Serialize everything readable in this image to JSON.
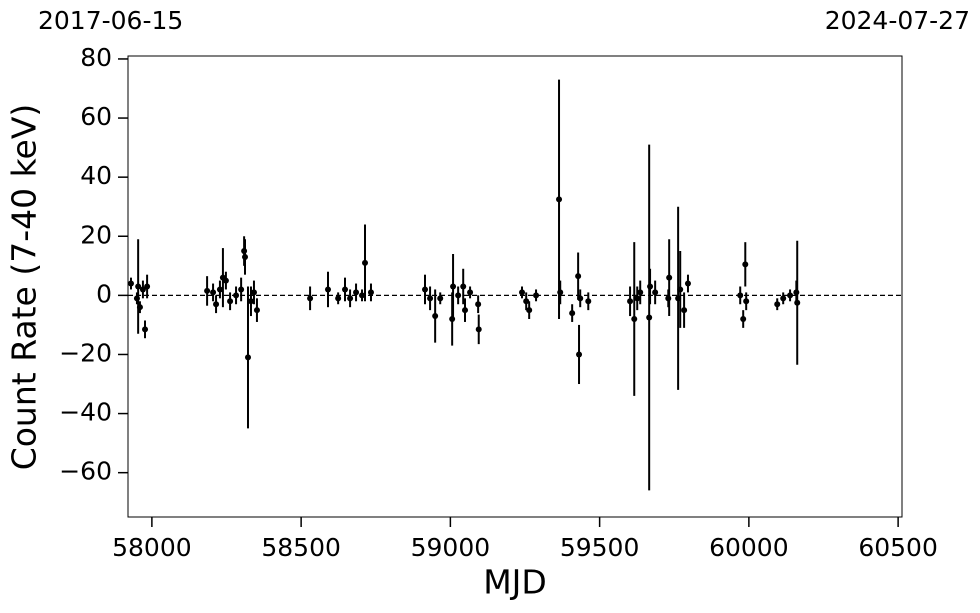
{
  "chart_data": {
    "type": "scatter",
    "xlabel": "MJD",
    "ylabel": "Count Rate (7-40 keV)",
    "annotations": [
      "2017-06-15",
      "2024-07-27"
    ],
    "xlim": [
      57920,
      60513
    ],
    "ylim": [
      -75,
      81
    ],
    "xticks": [
      58000,
      58500,
      59000,
      59500,
      60000,
      60500
    ],
    "yticks": [
      {
        "value": -60,
        "label": "−60"
      },
      {
        "value": -40,
        "label": "−40"
      },
      {
        "value": -20,
        "label": "−20"
      },
      0,
      20,
      40,
      60,
      80
    ],
    "hline": 0,
    "color": "#000000",
    "series": [
      {
        "name": "Count Rate",
        "x": [
          57930,
          57950,
          57954,
          57960,
          57970,
          57977,
          57984,
          58185,
          58205,
          58215,
          58228,
          58238,
          58248,
          58262,
          58282,
          58299,
          58309,
          58312,
          58322,
          58332,
          58342,
          58352,
          58530,
          58590,
          58624,
          58647,
          58664,
          58684,
          58704,
          58714,
          58734,
          58915,
          58932,
          58949,
          58966,
          59006,
          59009,
          59026,
          59043,
          59049,
          59066,
          59093,
          59095,
          59240,
          59254,
          59264,
          59287,
          59364,
          59368,
          59408,
          59428,
          59431,
          59435,
          59462,
          59602,
          59616,
          59626,
          59636,
          59666,
          59669,
          59686,
          59730,
          59733,
          59763,
          59770,
          59783,
          59796,
          59971,
          59981,
          59988,
          59991,
          60095,
          60115,
          60138,
          60159,
          60162
        ],
        "values": [
          4,
          -1,
          3,
          -4,
          2,
          -11.5,
          3,
          1.5,
          1,
          -3,
          2,
          6,
          5,
          -2,
          0,
          2,
          15,
          13,
          -21,
          -2,
          1,
          -5,
          -1,
          2,
          -1,
          2,
          -1,
          1,
          0,
          11,
          1,
          2,
          -1,
          -7,
          -1,
          -8,
          3,
          0,
          3,
          -5,
          1,
          -3,
          -11.5,
          1,
          -2,
          -5,
          0,
          32.5,
          1,
          -6,
          6.5,
          -20,
          -1,
          -2,
          -2,
          -8,
          -1,
          1,
          -7.5,
          3,
          1,
          -1,
          6,
          -1,
          2,
          -5,
          4,
          0,
          -8,
          10.5,
          -2,
          -3,
          -1,
          0,
          1,
          -2.5
        ],
        "errors": [
          2,
          2,
          16,
          2,
          3,
          3,
          4,
          5,
          3,
          3,
          3,
          10,
          3,
          3,
          3,
          4,
          5,
          6,
          24,
          5,
          4,
          4,
          4,
          6,
          2,
          4,
          3,
          3,
          2,
          13,
          3,
          5,
          4,
          9,
          2,
          9,
          11,
          3,
          6,
          4,
          2,
          3,
          5,
          2,
          3,
          3,
          2,
          40.5,
          4,
          3,
          8,
          10,
          3,
          3,
          5,
          26,
          4,
          4,
          58.5,
          6,
          4,
          3,
          13,
          31,
          13,
          6,
          3,
          3,
          3,
          7.5,
          3,
          2,
          2,
          2,
          4,
          21
        ]
      }
    ]
  }
}
